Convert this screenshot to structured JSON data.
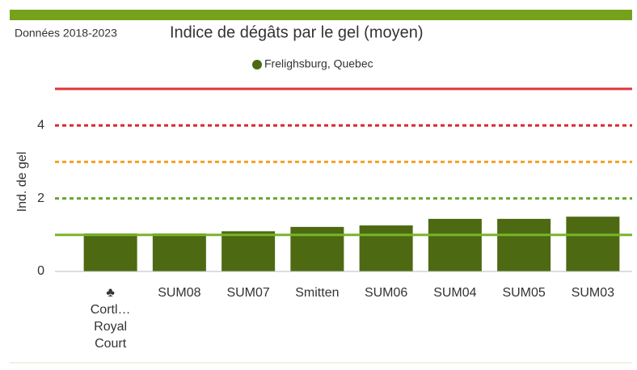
{
  "chart_data": {
    "type": "bar",
    "subtitle": "Données 2018-2023",
    "title": "Indice de dégâts par le gel (moyen)",
    "y_label": "Ind. de gel",
    "categories": [
      [
        "♣",
        "Cortl…",
        "Royal",
        "Court"
      ],
      [
        "SUM08"
      ],
      [
        "SUM07"
      ],
      [
        "Smitten"
      ],
      [
        "SUM06"
      ],
      [
        "SUM04"
      ],
      [
        "SUM05"
      ],
      [
        "SUM03"
      ]
    ],
    "series": [
      {
        "name": "Frelighsburg, Quebec",
        "color": "#4d6a12",
        "values": [
          1.04,
          1.04,
          1.1,
          1.22,
          1.26,
          1.44,
          1.44,
          1.5
        ]
      }
    ],
    "ylim": [
      0,
      5
    ],
    "yticks": [
      0,
      2,
      4
    ],
    "reference_lines": [
      {
        "value": 5,
        "color": "#e2343c",
        "style": "solid"
      },
      {
        "value": 4,
        "color": "#d9282f",
        "style": "dashed"
      },
      {
        "value": 3,
        "color": "#f5a020",
        "style": "dashed"
      },
      {
        "value": 2,
        "color": "#6aa530",
        "style": "dashed"
      },
      {
        "value": 1,
        "color": "#78b428",
        "style": "solid"
      }
    ],
    "legend": "top"
  }
}
